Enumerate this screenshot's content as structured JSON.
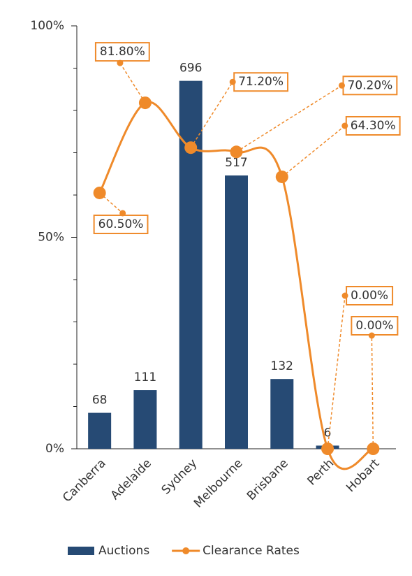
{
  "chart_data": {
    "type": "bar-line",
    "categories": [
      "Canberra",
      "Adelaide",
      "Sydney",
      "Melbourne",
      "Brisbane",
      "Perth",
      "Hobart"
    ],
    "series": [
      {
        "name": "Auctions",
        "type": "bar",
        "axis": "y2",
        "color": "#264a74",
        "values": [
          68,
          111,
          696,
          517,
          132,
          6,
          null
        ]
      },
      {
        "name": "Clearance Rates",
        "type": "line",
        "color": "#ef8a2a",
        "values": [
          60.5,
          81.8,
          71.2,
          70.2,
          64.3,
          0,
          0
        ],
        "value_labels": [
          "60.50%",
          "81.80%",
          "71.20%",
          "70.20%",
          "64.30%",
          "0.00%",
          "0.00%"
        ]
      }
    ],
    "ylim": [
      0,
      100
    ],
    "yticks": [
      {
        "value": 0,
        "label": "0%"
      },
      {
        "value": 50,
        "label": "50%"
      },
      {
        "value": 100,
        "label": "100%"
      }
    ],
    "yminorticks": [
      10,
      20,
      30,
      40,
      60,
      70,
      80,
      90
    ],
    "y2lim": [
      0,
      800
    ],
    "legend": "bottom"
  }
}
